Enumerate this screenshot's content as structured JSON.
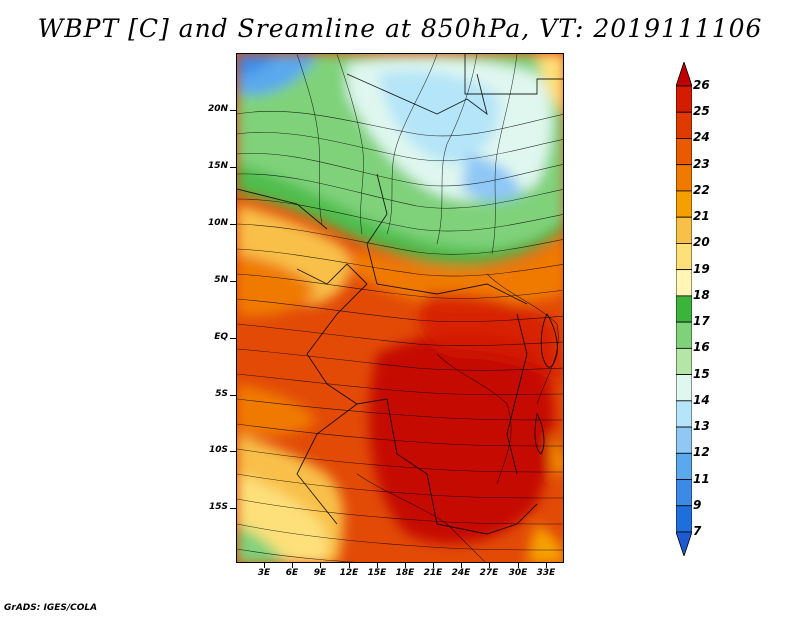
{
  "title": "WBPT [C] and Sreamline at 850hPa, VT: 2019111106",
  "footer": "GrADS: IGES/COLA",
  "map": {
    "variable": "WBPT",
    "units": "C",
    "level": "850hPa",
    "valid_time": "2019111106",
    "lon_range": [
      0,
      35
    ],
    "lat_range": [
      -20,
      24
    ],
    "lat_labels": [
      "20N",
      "15N",
      "10N",
      "5N",
      "EQ",
      "5S",
      "10S",
      "15S"
    ],
    "lon_labels": [
      "3E",
      "6E",
      "9E",
      "12E",
      "15E",
      "18E",
      "21E",
      "24E",
      "27E",
      "30E",
      "33E"
    ]
  },
  "colorbar": {
    "labels": [
      "26",
      "25",
      "24",
      "23",
      "22",
      "21",
      "20",
      "19",
      "18",
      "17",
      "16",
      "15",
      "14",
      "13",
      "12",
      "11",
      "9",
      "7"
    ],
    "colors": [
      "#c00000",
      "#d41c00",
      "#e03a00",
      "#ea5a00",
      "#f07a00",
      "#f5a000",
      "#f8c048",
      "#fde07a",
      "#fff5b5",
      "#3cb43c",
      "#7fd27a",
      "#b4e6a8",
      "#dff7ef",
      "#b5e5f8",
      "#8fc8f5",
      "#5aa8ee",
      "#3c8ae6",
      "#1e6edc",
      "#1e5ad2"
    ]
  }
}
